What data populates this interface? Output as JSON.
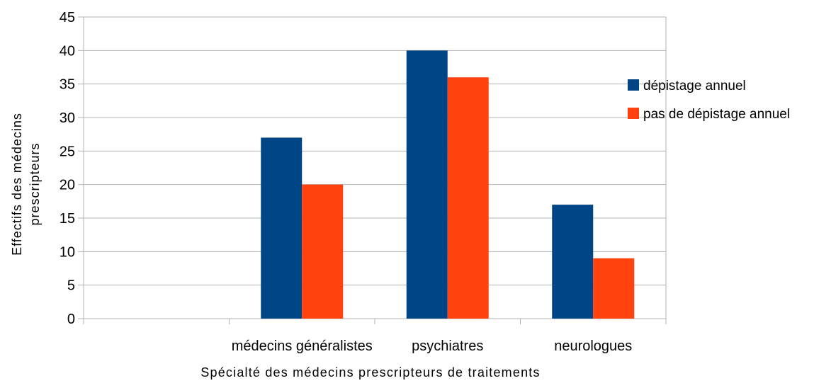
{
  "chart_data": {
    "type": "bar",
    "categories": [
      "",
      "médecins généralistes",
      "psychiatres",
      "neurologues"
    ],
    "series": [
      {
        "name": "dépistage annuel",
        "color": "#004586",
        "values": [
          null,
          27,
          40,
          17
        ]
      },
      {
        "name": "pas de dépistage annuel",
        "color": "#ff420e",
        "values": [
          null,
          20,
          36,
          9
        ]
      }
    ],
    "xlabel": "Spécialté des médecins prescripteurs de traitements",
    "ylabel_lines": [
      "Effectifs des médecins",
      "prescripteurs"
    ],
    "ylim": [
      0,
      45
    ],
    "yticks": [
      0,
      5,
      10,
      15,
      20,
      25,
      30,
      35,
      40,
      45
    ],
    "grid": true,
    "legend_position": "right"
  }
}
